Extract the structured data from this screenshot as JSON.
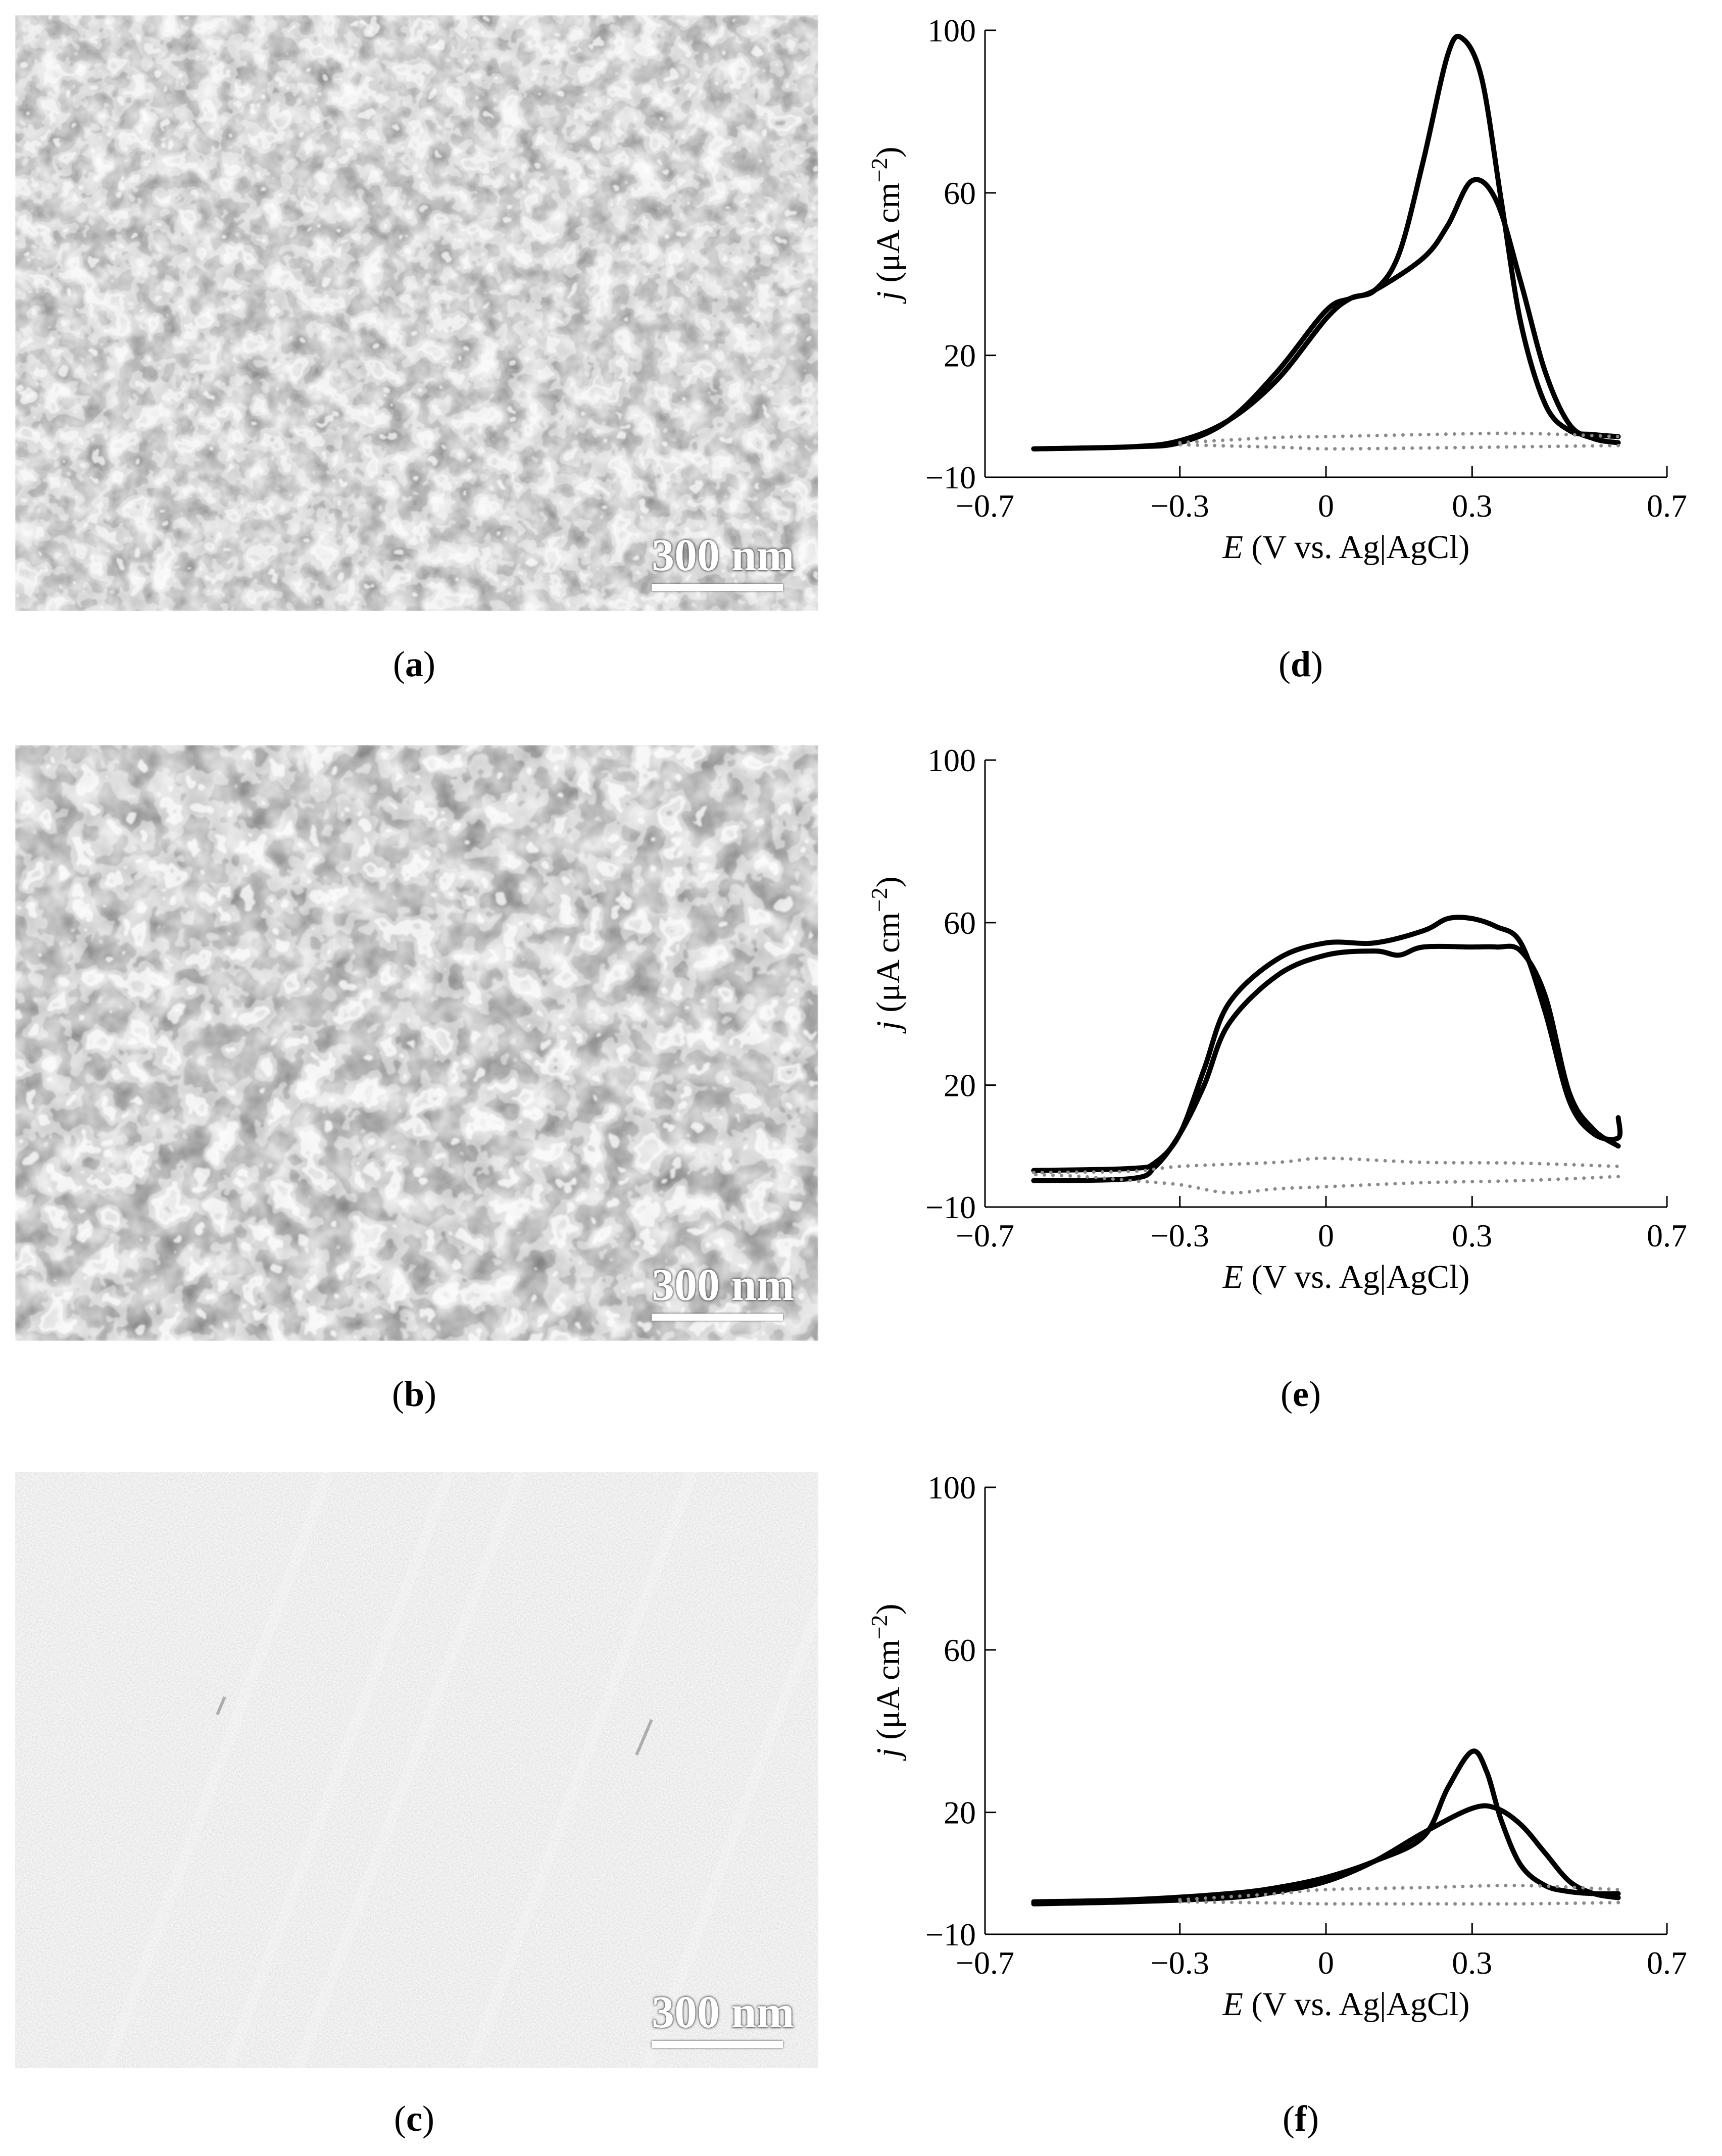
{
  "panels": {
    "a": {
      "caption": "a",
      "scalebar": "300 nm",
      "texture": "porous-network"
    },
    "b": {
      "caption": "b",
      "scalebar": "300 nm",
      "texture": "porous-network-coarse"
    },
    "c": {
      "caption": "c",
      "scalebar": "300 nm",
      "texture": "flat-striated"
    },
    "d": {
      "caption": "d"
    },
    "e": {
      "caption": "e"
    },
    "f": {
      "caption": "f"
    }
  },
  "chart_data": [
    {
      "id": "d",
      "type": "line",
      "title": "",
      "xlabel_italic": "E",
      "xlabel_rest": " (V vs. Ag|AgCl)",
      "ylabel_italic": "j",
      "ylabel_rest": " (μA cm",
      "ylabel_sup": "−2",
      "ylabel_end": ")",
      "xlim": [
        -0.7,
        0.7
      ],
      "ylim": [
        -10,
        100
      ],
      "xticks": [
        -0.7,
        -0.3,
        0,
        0.3,
        0.7
      ],
      "xtick_labels": [
        "−0.7",
        "−0.3",
        "0",
        "0.3",
        "0.7"
      ],
      "yticks": [
        -10,
        20,
        60,
        100
      ],
      "ytick_labels": [
        "−10",
        "20",
        "60",
        "100"
      ],
      "grid": false,
      "series": [
        {
          "style": "solid",
          "x": [
            -0.6,
            -0.4,
            -0.3,
            -0.2,
            -0.1,
            0,
            0.05,
            0.1,
            0.15,
            0.2,
            0.25,
            0.28,
            0.32,
            0.36,
            0.4,
            0.45,
            0.5,
            0.55,
            0.6
          ],
          "y": [
            -3,
            -2.5,
            -1,
            4,
            14,
            29,
            34,
            36,
            45,
            68,
            94,
            98,
            88,
            58,
            28,
            8,
            1.5,
            0.5,
            0
          ]
        },
        {
          "style": "solid",
          "x": [
            0.6,
            0.55,
            0.5,
            0.45,
            0.4,
            0.35,
            0.3,
            0.25,
            0.2,
            0.1,
            0.05,
            0,
            -0.1,
            -0.2,
            -0.3,
            -0.4,
            -0.6
          ],
          "y": [
            -1.5,
            -0.5,
            3,
            16,
            38,
            58,
            63,
            52,
            44,
            36,
            34,
            31,
            16,
            4,
            -1.5,
            -2.5,
            -3
          ]
        },
        {
          "style": "dotted",
          "x": [
            -0.3,
            -0.1,
            0,
            0.2,
            0.4,
            0.6
          ],
          "y": [
            -1.5,
            -0.2,
            0,
            0.5,
            0.8,
            0
          ]
        },
        {
          "style": "dotted",
          "x": [
            0.6,
            0.4,
            0.2,
            0,
            -0.1,
            -0.3
          ],
          "y": [
            -2.2,
            -2.5,
            -2.8,
            -3,
            -2.6,
            -2
          ]
        }
      ]
    },
    {
      "id": "e",
      "type": "line",
      "title": "",
      "xlabel_italic": "E",
      "xlabel_rest": " (V vs. Ag|AgCl)",
      "ylabel_italic": "j",
      "ylabel_rest": " (μA cm",
      "ylabel_sup": "−2",
      "ylabel_end": ")",
      "xlim": [
        -0.7,
        0.7
      ],
      "ylim": [
        -10,
        100
      ],
      "xticks": [
        -0.7,
        -0.3,
        0,
        0.3,
        0.7
      ],
      "xtick_labels": [
        "−0.7",
        "−0.3",
        "0",
        "0.3",
        "0.7"
      ],
      "yticks": [
        -10,
        20,
        60,
        100
      ],
      "ytick_labels": [
        "−10",
        "20",
        "60",
        "100"
      ],
      "grid": false,
      "series": [
        {
          "style": "solid",
          "x": [
            -0.6,
            -0.4,
            -0.35,
            -0.3,
            -0.25,
            -0.2,
            -0.1,
            0,
            0.1,
            0.2,
            0.25,
            0.3,
            0.35,
            0.4,
            0.45,
            0.5,
            0.55,
            0.6,
            0.6
          ],
          "y": [
            -1,
            -0.5,
            1,
            8,
            24,
            40,
            51,
            55,
            55,
            58,
            61,
            61,
            59,
            55,
            38,
            16,
            8,
            7,
            12
          ]
        },
        {
          "style": "solid",
          "x": [
            0.6,
            0.55,
            0.5,
            0.45,
            0.4,
            0.35,
            0.3,
            0.2,
            0.15,
            0.1,
            0,
            -0.1,
            -0.2,
            -0.25,
            -0.3,
            -0.35,
            -0.4,
            -0.6
          ],
          "y": [
            5,
            9,
            18,
            42,
            53,
            54,
            54,
            54,
            52,
            53,
            52,
            47,
            35,
            20,
            8,
            0,
            -3,
            -3.5
          ]
        },
        {
          "style": "dotted",
          "x": [
            -0.6,
            -0.4,
            -0.3,
            -0.1,
            0,
            0.2,
            0.4,
            0.6
          ],
          "y": [
            -1.5,
            -1.2,
            0,
            1,
            2,
            1,
            0.8,
            0
          ]
        },
        {
          "style": "dotted",
          "x": [
            0.6,
            0.4,
            0.2,
            0,
            -0.1,
            -0.2,
            -0.3,
            -0.4,
            -0.5,
            -0.6
          ],
          "y": [
            -2.5,
            -3.5,
            -4,
            -5,
            -5.5,
            -6.5,
            -4.5,
            -3.5,
            -2.5,
            -2
          ]
        }
      ]
    },
    {
      "id": "f",
      "type": "line",
      "title": "",
      "xlabel_italic": "E",
      "xlabel_rest": " (V vs. Ag|AgCl)",
      "ylabel_italic": "j",
      "ylabel_rest": " (μA cm",
      "ylabel_sup": "−2",
      "ylabel_end": ")",
      "xlim": [
        -0.7,
        0.7
      ],
      "ylim": [
        -10,
        100
      ],
      "xticks": [
        -0.7,
        -0.3,
        0,
        0.3,
        0.7
      ],
      "xtick_labels": [
        "−0.7",
        "−0.3",
        "0",
        "0.3",
        "0.7"
      ],
      "yticks": [
        -10,
        20,
        60,
        100
      ],
      "ytick_labels": [
        "−10",
        "20",
        "60",
        "100"
      ],
      "grid": false,
      "series": [
        {
          "style": "solid",
          "x": [
            -0.6,
            -0.4,
            -0.2,
            -0.1,
            0,
            0.1,
            0.2,
            0.25,
            0.3,
            0.33,
            0.36,
            0.4,
            0.45,
            0.5,
            0.55,
            0.6
          ],
          "y": [
            -2,
            -1.5,
            0,
            1.5,
            4,
            8,
            14,
            26,
            35,
            30,
            18,
            7,
            2,
            0.5,
            0,
            0
          ]
        },
        {
          "style": "solid",
          "x": [
            0.6,
            0.55,
            0.5,
            0.45,
            0.4,
            0.35,
            0.3,
            0.2,
            0.1,
            0,
            -0.1,
            -0.2,
            -0.4,
            -0.6
          ],
          "y": [
            -1,
            0,
            3,
            10,
            17,
            21,
            21,
            15,
            8,
            3,
            0.5,
            -1,
            -2,
            -2.5
          ]
        },
        {
          "style": "dotted",
          "x": [
            -0.3,
            -0.1,
            0,
            0.2,
            0.4,
            0.6
          ],
          "y": [
            -1.5,
            0,
            1,
            1.5,
            2,
            1
          ]
        },
        {
          "style": "dotted",
          "x": [
            0.6,
            0.4,
            0.2,
            0,
            -0.1,
            -0.3
          ],
          "y": [
            -2.2,
            -2.5,
            -2.5,
            -2.5,
            -2.3,
            -2
          ]
        }
      ]
    }
  ]
}
